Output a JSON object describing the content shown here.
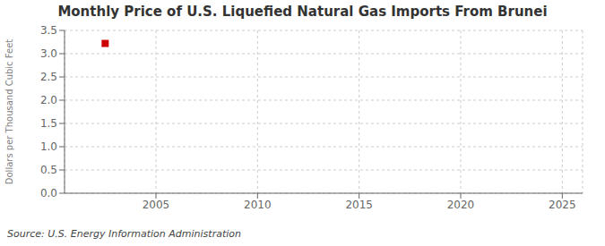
{
  "chart_data": {
    "type": "scatter",
    "title": "Monthly Price of U.S. Liquefied Natural Gas Imports From Brunei",
    "ylabel": "Dollars per Thousand Cubic Feet",
    "source": "Source: U.S. Energy Information Administration",
    "x": [
      2002.5
    ],
    "values": [
      3.22
    ],
    "color": "#cc0000",
    "marker": "square",
    "xlim": [
      2000.5,
      2026
    ],
    "ylim": [
      0.0,
      3.5
    ],
    "xticks": [
      2005,
      2010,
      2015,
      2020,
      2025
    ],
    "yticks": [
      {
        "value": 0,
        "label": "0.0"
      },
      0.5,
      {
        "value": 1,
        "label": "1.0"
      },
      1.5,
      {
        "value": 2,
        "label": "2.0"
      },
      2.5,
      {
        "value": 3,
        "label": "3.0"
      },
      3.5
    ],
    "grid": true
  }
}
